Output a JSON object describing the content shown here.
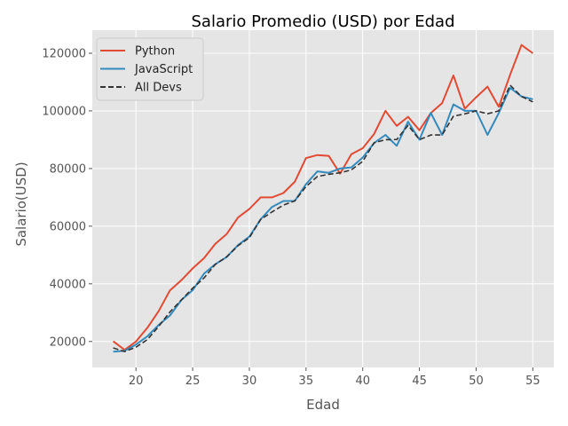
{
  "chart_data": {
    "type": "line",
    "title": "Salario Promedio (USD) por Edad",
    "xlabel": "Edad",
    "ylabel": "Salario(USD)",
    "xlim": [
      16.15,
      56.85
    ],
    "ylim": [
      11000,
      128000
    ],
    "xticks": [
      20,
      25,
      30,
      35,
      40,
      45,
      50,
      55
    ],
    "yticks": [
      20000,
      40000,
      60000,
      80000,
      100000,
      120000
    ],
    "grid": true,
    "background": "#e5e5e5",
    "legend_position": "upper-left",
    "x": [
      18,
      19,
      20,
      21,
      22,
      23,
      24,
      25,
      26,
      27,
      28,
      29,
      30,
      31,
      32,
      33,
      34,
      35,
      36,
      37,
      38,
      39,
      40,
      41,
      42,
      43,
      44,
      45,
      46,
      47,
      48,
      49,
      50,
      51,
      52,
      53,
      54,
      55
    ],
    "series": [
      {
        "name": "Python",
        "color": "#e24a33",
        "style": "solid",
        "values": [
          20046,
          17100,
          20000,
          24744,
          30500,
          37732,
          41247,
          45372,
          48876,
          53850,
          57287,
          63016,
          65998,
          70003,
          70000,
          71496,
          75370,
          83640,
          84666,
          84392,
          78254,
          85000,
          87038,
          91991,
          100000,
          94796,
          97962,
          93302,
          99240,
          102736,
          112285,
          100771,
          104708,
          108423,
          101407,
          112542,
          122870,
          120000
        ]
      },
      {
        "name": "JavaScript",
        "color": "#348abd",
        "style": "solid",
        "values": [
          16446,
          16791,
          18942,
          21780,
          25704,
          29000,
          34372,
          37810,
          43515,
          46823,
          49293,
          53437,
          56373,
          62375,
          66674,
          68745,
          68746,
          74583,
          79000,
          78508,
          79996,
          80403,
          83820,
          88833,
          91660,
          87892,
          96243,
          90000,
          99313,
          91660,
          102264,
          100000,
          100000,
          91660,
          99240,
          108000,
          105000,
          104000
        ]
      },
      {
        "name": "All Devs",
        "color": "#333333",
        "style": "dashed",
        "values": [
          17784,
          16500,
          18012,
          20628,
          25206,
          30252,
          34368,
          38496,
          42000,
          46752,
          49320,
          53200,
          56000,
          62316,
          64928,
          67317,
          68748,
          73752,
          77232,
          78000,
          78508,
          79536,
          82488,
          88935,
          90000,
          90056,
          95000,
          90000,
          91633,
          91660,
          98150,
          98964,
          100000,
          98988,
          100000,
          108923,
          105000,
          103117
        ]
      }
    ]
  }
}
